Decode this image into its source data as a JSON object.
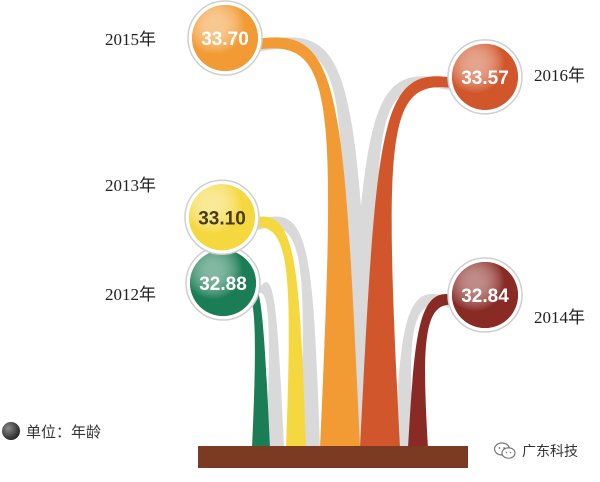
{
  "chart_data": {
    "type": "bar",
    "unit_label": "单位：年龄",
    "categories": [
      "2012年",
      "2013年",
      "2015年",
      "2016年",
      "2014年"
    ],
    "values": [
      32.88,
      33.1,
      33.7,
      33.57,
      32.84
    ],
    "value_labels": [
      "32.88",
      "33.10",
      "33.70",
      "33.57",
      "32.84"
    ],
    "colors": [
      "#1b7d55",
      "#f5d840",
      "#f29b35",
      "#d2562c",
      "#8a2a24"
    ]
  },
  "watermark": {
    "text": "广东科技",
    "icon": "wechat-icon"
  }
}
